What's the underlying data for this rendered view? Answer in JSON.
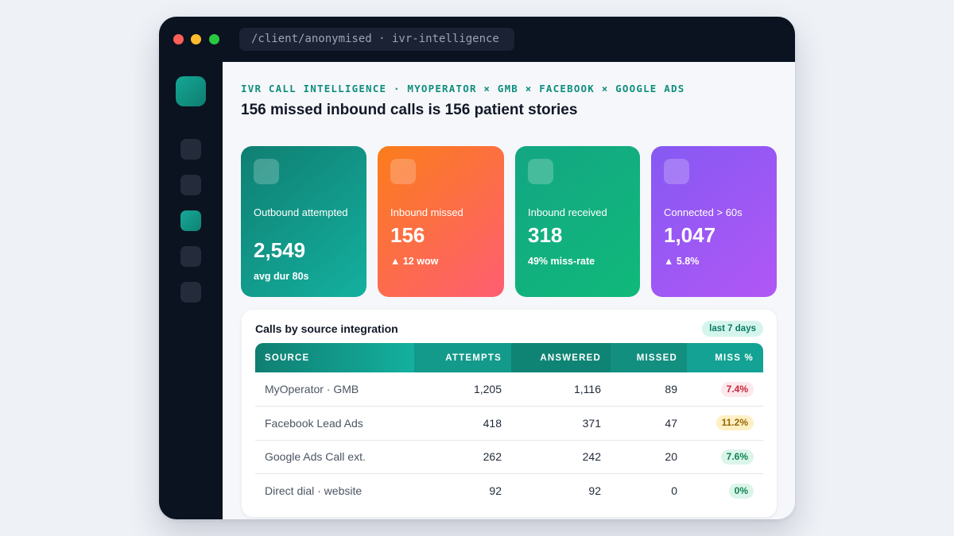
{
  "window": {
    "address": "/client/anonymised · ivr-intelligence"
  },
  "header": {
    "eyebrow": "IVR CALL INTELLIGENCE · MYOPERATOR × GMB × FACEBOOK × GOOGLE ADS",
    "headline": "156 missed inbound calls is 156 patient stories"
  },
  "sidebar": {
    "active_index": 2,
    "item_count": 5
  },
  "cards": [
    {
      "label": "Outbound attempted",
      "value": "2,549",
      "sub": "avg dur 80s"
    },
    {
      "label": "Inbound missed",
      "value": "156",
      "sub": "▲ 12 wow"
    },
    {
      "label": "Inbound received",
      "value": "318",
      "sub": "49% miss-rate"
    },
    {
      "label": "Connected > 60s",
      "value": "1,047",
      "sub": "▲ 5.8%"
    }
  ],
  "table": {
    "title": "Calls by source integration",
    "range": "last 7 days",
    "columns": [
      "SOURCE",
      "ATTEMPTS",
      "ANSWERED",
      "MISSED",
      "MISS %"
    ],
    "rows": [
      {
        "source": "MyOperator · GMB",
        "attempts": "1,205",
        "answered": "1,116",
        "missed": "89",
        "miss_pct": "7.4%",
        "status": "red"
      },
      {
        "source": "Facebook Lead Ads",
        "attempts": "418",
        "answered": "371",
        "missed": "47",
        "miss_pct": "11.2%",
        "status": "amber"
      },
      {
        "source": "Google Ads Call ext.",
        "attempts": "262",
        "answered": "242",
        "missed": "20",
        "miss_pct": "7.6%",
        "status": "green"
      },
      {
        "source": "Direct dial · website",
        "attempts": "92",
        "answered": "92",
        "missed": "0",
        "miss_pct": "0%",
        "status": "green"
      }
    ]
  },
  "colors": {
    "accent": "#0f8e7e",
    "chrome": "#0b1220",
    "miss_red": "#c8243b",
    "miss_amber": "#9a6606",
    "miss_green": "#0f8450"
  }
}
